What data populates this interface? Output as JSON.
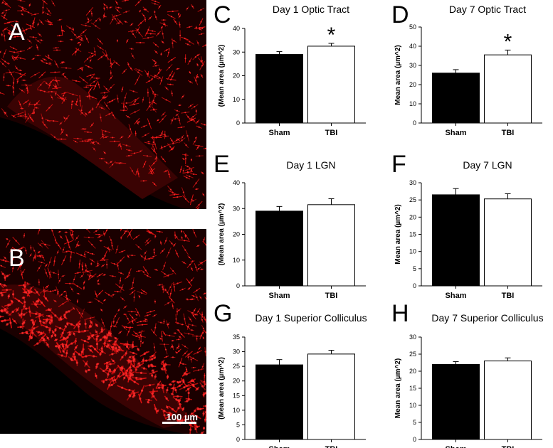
{
  "micrographs": [
    {
      "letter": "A",
      "scale_bar": ""
    },
    {
      "letter": "B",
      "scale_bar": "100 µm"
    }
  ],
  "colors": {
    "sham": "#000000",
    "tbi": "#ffffff",
    "stain": "#e01010"
  },
  "chart_data": [
    {
      "letter": "C",
      "type": "bar",
      "title": "Day 1 Optic Tract",
      "categories": [
        "Sham",
        "TBI"
      ],
      "values": [
        29,
        32.5
      ],
      "errors": [
        1.2,
        1.2
      ],
      "ylabel": "(Mean area (µm^2)",
      "ylim": [
        0,
        40
      ],
      "yticks": [
        0,
        10,
        20,
        30,
        40
      ],
      "significance": [
        "",
        "*"
      ]
    },
    {
      "letter": "D",
      "type": "bar",
      "title": "Day 7 Optic Tract",
      "categories": [
        "Sham",
        "TBI"
      ],
      "values": [
        26,
        35.5
      ],
      "errors": [
        1.8,
        2.5
      ],
      "ylabel": "Mean area (µm^2)",
      "ylim": [
        0,
        50
      ],
      "yticks": [
        0,
        10,
        20,
        30,
        40,
        50
      ],
      "significance": [
        "",
        "*"
      ]
    },
    {
      "letter": "E",
      "type": "bar",
      "title": "Day 1 LGN",
      "categories": [
        "Sham",
        "TBI"
      ],
      "values": [
        29,
        31.5
      ],
      "errors": [
        1.8,
        2.3
      ],
      "ylabel": "(Mean area (µm^2)",
      "ylim": [
        0,
        40
      ],
      "yticks": [
        0,
        10,
        20,
        30,
        40
      ],
      "significance": [
        "",
        ""
      ]
    },
    {
      "letter": "F",
      "type": "bar",
      "title": "Day 7 LGN",
      "categories": [
        "Sham",
        "TBI"
      ],
      "values": [
        26.5,
        25.3
      ],
      "errors": [
        1.8,
        1.5
      ],
      "ylabel": "Mean area (µm^2)",
      "ylim": [
        0,
        30
      ],
      "yticks": [
        0,
        5,
        10,
        15,
        20,
        25,
        30
      ],
      "significance": [
        "",
        ""
      ]
    },
    {
      "letter": "G",
      "type": "bar",
      "title": "Day 1 Superior Colliculus",
      "categories": [
        "Sham",
        "TBI"
      ],
      "values": [
        25.5,
        29.2
      ],
      "errors": [
        1.8,
        1.3
      ],
      "ylabel": "(Mean area (µm^2)",
      "ylim": [
        0,
        35
      ],
      "yticks": [
        0,
        5,
        10,
        15,
        20,
        25,
        30,
        35
      ],
      "significance": [
        "",
        ""
      ]
    },
    {
      "letter": "H",
      "type": "bar",
      "title": "Day 7 Superior Colliculus",
      "categories": [
        "Sham",
        "TBI"
      ],
      "values": [
        22,
        23
      ],
      "errors": [
        0.8,
        0.9
      ],
      "ylabel": "Mean area (µm^2)",
      "ylim": [
        0,
        30
      ],
      "yticks": [
        0,
        5,
        10,
        15,
        20,
        25,
        30
      ],
      "significance": [
        "",
        ""
      ]
    }
  ]
}
